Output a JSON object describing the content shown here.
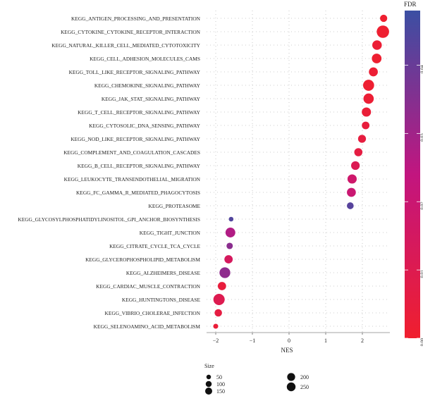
{
  "chart_data": {
    "type": "scatter",
    "xlabel": "NES",
    "ylabel": "",
    "xlim": [
      -2.25,
      2.75
    ],
    "x_ticks": [
      -2,
      -1,
      0,
      1,
      2
    ],
    "grid": true,
    "categories": [
      "KEGG_ANTIGEN_PROCESSING_AND_PRESENTATION",
      "KEGG_CYTOKINE_CYTOKINE_RECEPTOR_INTERACTION",
      "KEGG_NATURAL_KILLER_CELL_MEDIATED_CYTOTOXICITY",
      "KEGG_CELL_ADHESION_MOLECULES_CAMS",
      "KEGG_TOLL_LIKE_RECEPTOR_SIGNALING_PATHWAY",
      "KEGG_CHEMOKINE_SIGNALING_PATHWAY",
      "KEGG_JAK_STAT_SIGNALING_PATHWAY",
      "KEGG_T_CELL_RECEPTOR_SIGNALING_PATHWAY",
      "KEGG_CYTOSOLIC_DNA_SENSING_PATHWAY",
      "KEGG_NOD_LIKE_RECEPTOR_SIGNALING_PATHWAY",
      "KEGG_COMPLEMENT_AND_COAGULATION_CASCADES",
      "KEGG_B_CELL_RECEPTOR_SIGNALING_PATHWAY",
      "KEGG_LEUKOCYTE_TRANSENDOTHELIAL_MIGRATION",
      "KEGG_FC_GAMMA_R_MEDIATED_PHAGOCYTOSIS",
      "KEGG_PROTEASOME",
      "KEGG_GLYCOSYLPHOSPHATIDYLINOSITOL_GPI_ANCHOR_BIOSYNTHESIS",
      "KEGG_TIGHT_JUNCTION",
      "KEGG_CITRATE_CYCLE_TCA_CYCLE",
      "KEGG_GLYCEROPHOSPHOLIPID_METABOLISM",
      "KEGG_ALZHEIMERS_DISEASE",
      "KEGG_CARDIAC_MUSCLE_CONTRACTION",
      "KEGG_HUNTINGTONS_DISEASE",
      "KEGG_VIBRIO_CHOLERAE_INFECTION",
      "KEGG_SELENOAMINO_ACID_METABOLISM"
    ],
    "nes": [
      2.58,
      2.56,
      2.4,
      2.39,
      2.3,
      2.17,
      2.17,
      2.11,
      2.09,
      1.99,
      1.89,
      1.81,
      1.72,
      1.7,
      1.67,
      -1.58,
      -1.6,
      -1.62,
      -1.65,
      -1.75,
      -1.83,
      -1.91,
      -1.93,
      -2.0
    ],
    "size": [
      70,
      260,
      140,
      145,
      120,
      200,
      170,
      130,
      80,
      90,
      95,
      110,
      130,
      120,
      60,
      20,
      150,
      50,
      100,
      190,
      100,
      210,
      75,
      25
    ],
    "fdr": [
      0.0005,
      0.001,
      0.002,
      0.001,
      0.002,
      0.001,
      0.002,
      0.003,
      0.004,
      0.005,
      0.006,
      0.011,
      0.018,
      0.02,
      0.043,
      0.044,
      0.027,
      0.034,
      0.014,
      0.033,
      0.004,
      0.01,
      0.006,
      0.003
    ],
    "color_scale": {
      "title": "FDR",
      "ticks": [
        "0.00",
        "0.01",
        "0.02",
        "0.03",
        "0.04"
      ],
      "domain": [
        0,
        0.048
      ],
      "low_color": "#f01f2e",
      "mid_color": "#c2157f",
      "high_color": "#3b4fa3"
    },
    "size_legend": {
      "title": "Size",
      "values": [
        50,
        100,
        150,
        200,
        250
      ]
    }
  }
}
